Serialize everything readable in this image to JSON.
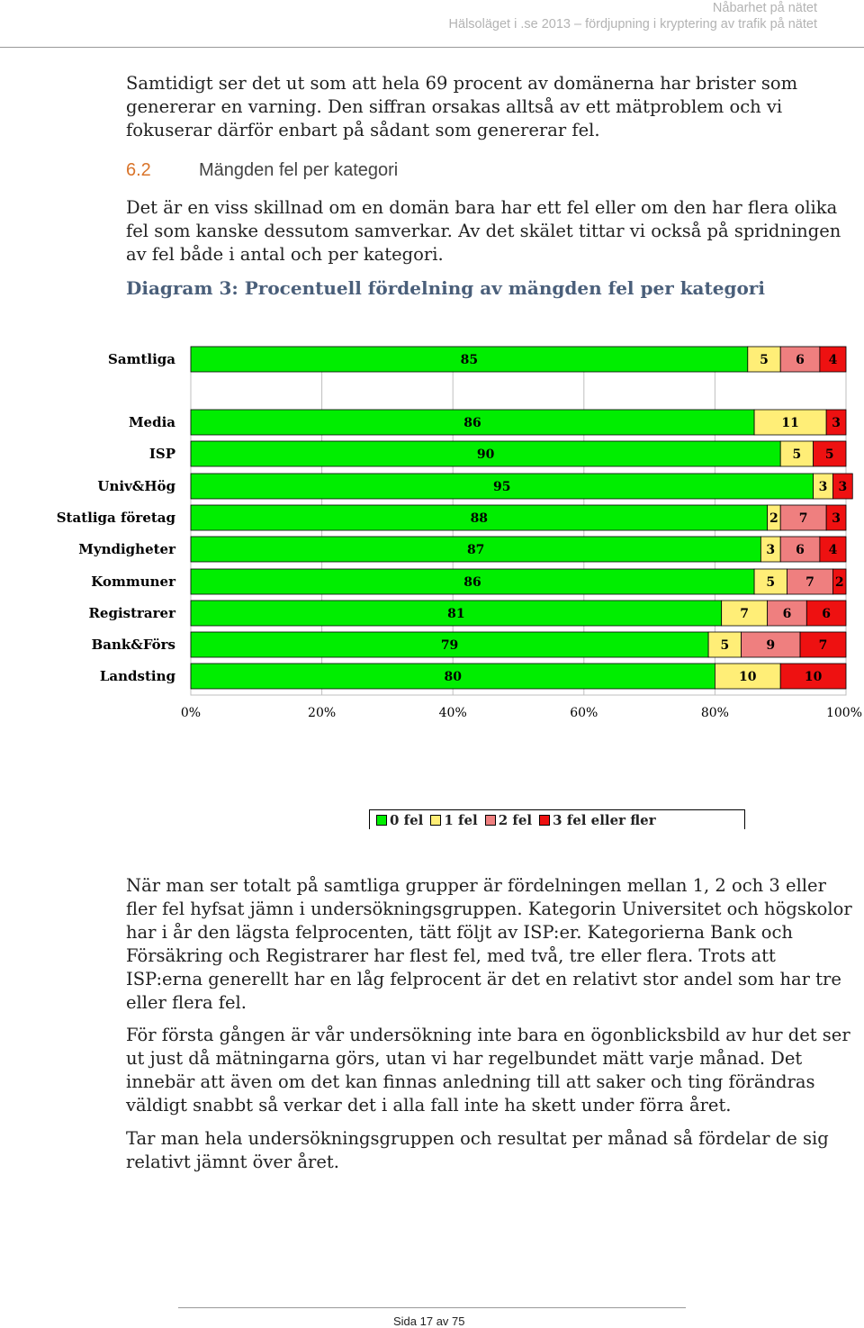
{
  "header": {
    "line1": "Nåbarhet på nätet",
    "line2": "Hälsoläget i .se 2013 – fördjupning i kryptering av trafik på nätet"
  },
  "paragraphs": {
    "intro": "Samtidigt ser det ut som att hela 69 procent av domänerna har brister som genererar en varning. Den siffran orsakas alltså av ett mätproblem och vi fokuserar därför enbart på sådant som genererar fel.",
    "section_text": "Det är en viss skillnad om en domän bara har ett fel eller om den har flera olika fel som kanske dessutom samverkar. Av det skälet tittar vi också på spridningen av fel både i antal och per kategori.",
    "after_1": "När man ser totalt på samtliga grupper är fördelningen mellan 1, 2 och 3 eller fler fel hyfsat jämn i undersökningsgruppen. Kategorin Universitet och högskolor har i år den lägsta felprocenten, tätt följt av ISP:er. Kategorierna Bank och Försäkring och Registrarer har flest fel, med två, tre eller flera. Trots att ISP:erna generellt har en låg felprocent är det en relativt stor andel som har tre eller flera fel.",
    "after_2": "För första gången är vår undersökning inte bara en ögonblicksbild av hur det ser ut just då mätningarna görs, utan vi har regelbundet mätt varje månad. Det innebär att även om det kan finnas anledning till att saker och ting förändras väldigt snabbt så verkar det i alla fall inte ha skett under förra året.",
    "after_3": "Tar man hela undersökningsgruppen och resultat per månad så fördelar de sig relativt jämnt över året."
  },
  "section": {
    "number": "6.2",
    "title": "Mängden fel per kategori"
  },
  "diagram": {
    "title": "Diagram 3: Procentuell fördelning av mängden fel per kategori"
  },
  "chart_data": {
    "type": "bar",
    "orientation": "horizontal",
    "stacked": true,
    "categories": [
      "Samtliga",
      "Media",
      "ISP",
      "Univ&Hög",
      "Statliga företag",
      "Myndigheter",
      "Kommuner",
      "Registrarer",
      "Bank&Förs",
      "Landsting"
    ],
    "series": [
      {
        "name": "0 fel",
        "color": "#00ee00",
        "values": [
          85,
          86,
          90,
          95,
          88,
          87,
          86,
          81,
          79,
          80
        ]
      },
      {
        "name": "1 fel",
        "color": "#ffee77",
        "values": [
          5,
          11,
          5,
          3,
          2,
          3,
          5,
          7,
          5,
          10
        ]
      },
      {
        "name": "2 fel",
        "color": "#ef7f7f",
        "values": [
          6,
          0,
          0,
          0,
          7,
          6,
          7,
          6,
          9,
          0
        ]
      },
      {
        "name": "3 fel eller fler",
        "color": "#ee1111",
        "values": [
          4,
          3,
          5,
          3,
          3,
          4,
          2,
          6,
          7,
          10
        ]
      }
    ],
    "xlim": [
      0,
      100
    ],
    "xticks": [
      "0%",
      "20%",
      "40%",
      "60%",
      "80%",
      "100%"
    ],
    "grid": true,
    "legend_position": "bottom"
  },
  "footer": {
    "page": "Sida 17 av 75"
  }
}
